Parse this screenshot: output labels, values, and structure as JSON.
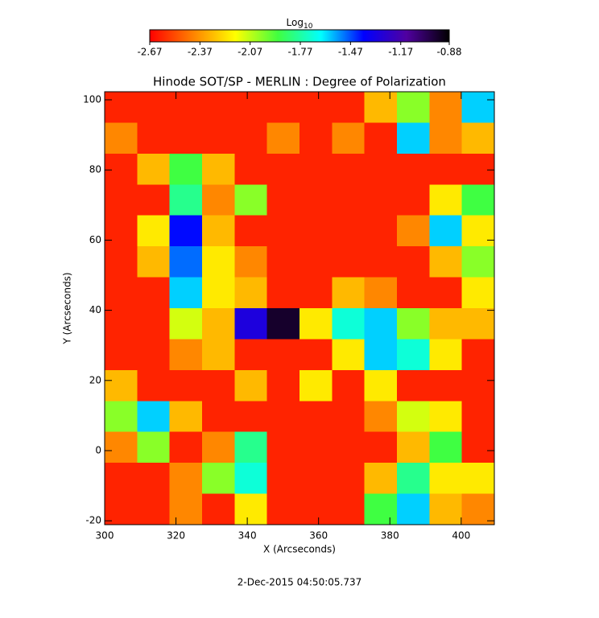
{
  "chart_data": {
    "type": "heatmap",
    "title": "Hinode SOT/SP - MERLIN : Degree of Polarization",
    "xlabel": "X (Arcseconds)",
    "ylabel": "Y (Arcseconds)",
    "colorbar_label": "Log",
    "colorbar_label_subscript": "10",
    "footer": "2-Dec-2015 04:50:05.737",
    "xlim": [
      300,
      409.3
    ],
    "ylim": [
      -21.1,
      102.3
    ],
    "xticks": [
      300,
      320,
      340,
      360,
      380,
      400
    ],
    "yticks": [
      -20,
      0,
      20,
      40,
      60,
      80,
      100
    ],
    "zlim": [
      -2.67,
      -0.88
    ],
    "zticks": [
      -2.67,
      -2.37,
      -2.07,
      -1.77,
      -1.47,
      -1.17,
      -0.88
    ],
    "colorscale": [
      "#ff0000",
      "#ff8000",
      "#ffff00",
      "#40ff40",
      "#00ffff",
      "#0000ff",
      "#5000a0",
      "#000000"
    ],
    "z": [
      [
        -2.6,
        -2.6,
        -2.6,
        -2.6,
        -2.6,
        -2.6,
        -2.6,
        -2.6,
        -2.3,
        -2.0,
        -2.4,
        -1.6
      ],
      [
        -2.4,
        -2.6,
        -2.6,
        -2.6,
        -2.6,
        -2.4,
        -2.6,
        -2.4,
        -2.6,
        -1.6,
        -2.4,
        -2.3
      ],
      [
        -2.6,
        -2.3,
        -1.9,
        -2.3,
        -2.6,
        -2.6,
        -2.6,
        -2.6,
        -2.6,
        -2.6,
        -2.6,
        -2.6
      ],
      [
        -2.6,
        -2.6,
        -1.8,
        -2.4,
        -2.0,
        -2.6,
        -2.6,
        -2.6,
        -2.6,
        -2.6,
        -2.2,
        -1.9
      ],
      [
        -2.6,
        -2.2,
        -1.4,
        -2.3,
        -2.6,
        -2.6,
        -2.6,
        -2.6,
        -2.6,
        -2.4,
        -1.6,
        -2.2
      ],
      [
        -2.6,
        -2.3,
        -1.5,
        -2.2,
        -2.4,
        -2.6,
        -2.6,
        -2.6,
        -2.6,
        -2.6,
        -2.3,
        -2.0
      ],
      [
        -2.6,
        -2.6,
        -1.6,
        -2.2,
        -2.3,
        -2.6,
        -2.6,
        -2.3,
        -2.4,
        -2.6,
        -2.6,
        -2.2
      ],
      [
        -2.6,
        -2.6,
        -2.1,
        -2.3,
        -1.3,
        -0.95,
        -2.2,
        -1.7,
        -1.6,
        -2.0,
        -2.3,
        -2.3
      ],
      [
        -2.6,
        -2.6,
        -2.4,
        -2.3,
        -2.6,
        -2.6,
        -2.6,
        -2.2,
        -1.6,
        -1.7,
        -2.2,
        -2.6
      ],
      [
        -2.3,
        -2.6,
        -2.6,
        -2.6,
        -2.3,
        -2.6,
        -2.2,
        -2.6,
        -2.2,
        -2.6,
        -2.6,
        -2.6
      ],
      [
        -2.0,
        -1.6,
        -2.3,
        -2.6,
        -2.6,
        -2.6,
        -2.6,
        -2.6,
        -2.4,
        -2.1,
        -2.2,
        -2.6
      ],
      [
        -2.4,
        -2.0,
        -2.6,
        -2.4,
        -1.8,
        -2.6,
        -2.6,
        -2.6,
        -2.6,
        -2.3,
        -1.9,
        -2.6
      ],
      [
        -2.6,
        -2.6,
        -2.4,
        -2.0,
        -1.7,
        -2.6,
        -2.6,
        -2.6,
        -2.3,
        -1.8,
        -2.2,
        -2.2
      ],
      [
        -2.6,
        -2.6,
        -2.4,
        -2.6,
        -2.2,
        -2.6,
        -2.6,
        -2.6,
        -1.9,
        -1.6,
        -2.3,
        -2.4
      ]
    ]
  }
}
